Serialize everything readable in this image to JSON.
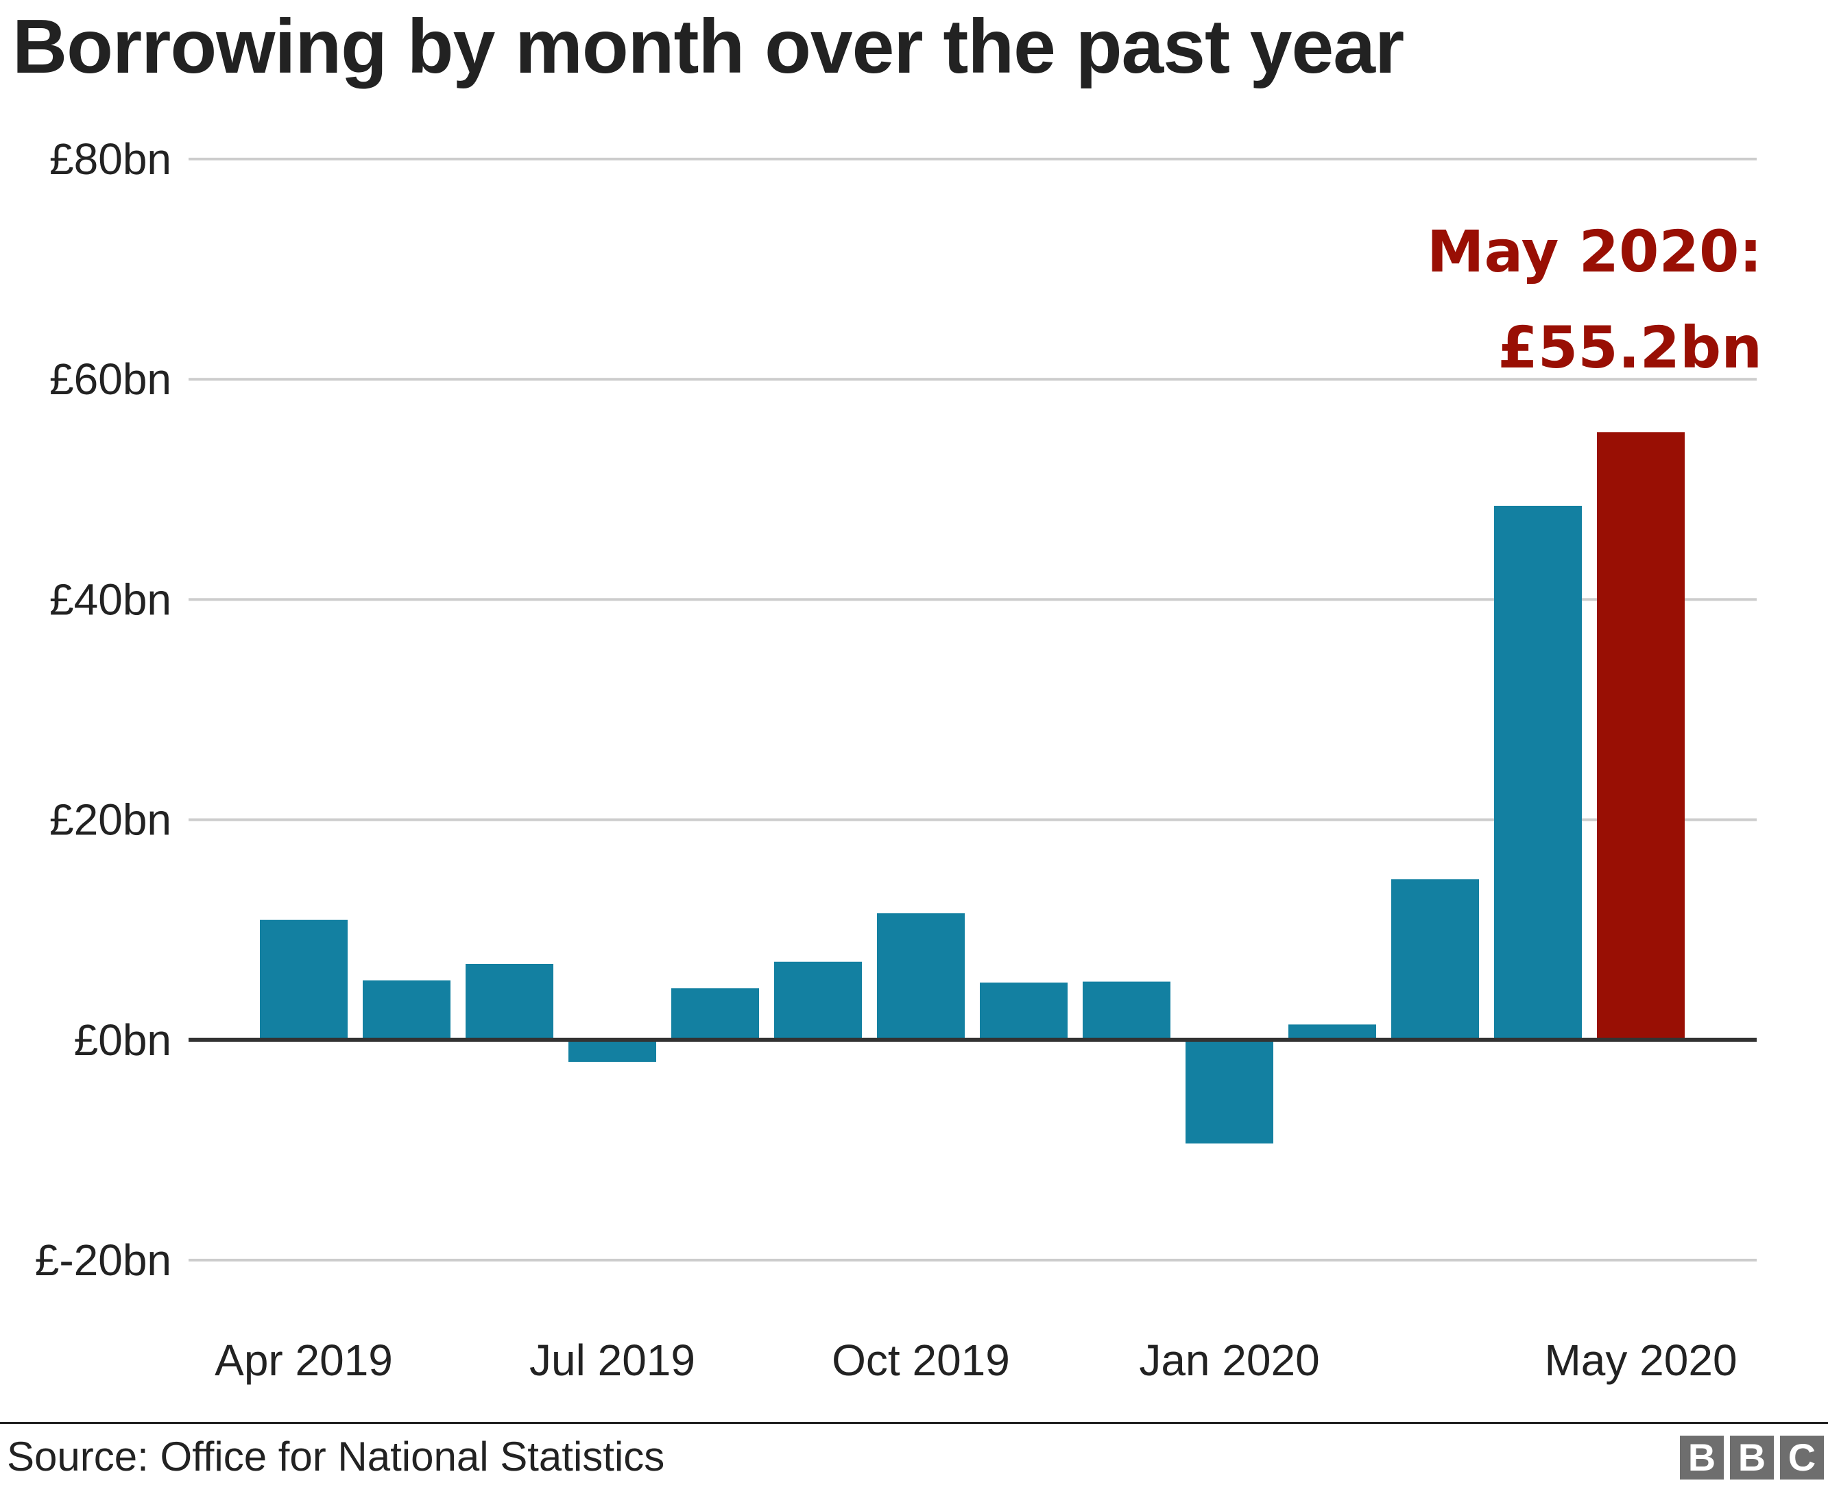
{
  "chart_data": {
    "type": "bar",
    "title": "Borrowing by month over the past year",
    "categories": [
      "Apr 2019",
      "May 2019",
      "Jun 2019",
      "Jul 2019",
      "Aug 2019",
      "Sep 2019",
      "Oct 2019",
      "Nov 2019",
      "Dec 2019",
      "Jan 2020",
      "Feb 2020",
      "Mar 2020",
      "Apr 2020",
      "May 2020"
    ],
    "values": [
      10.9,
      5.4,
      6.9,
      -2.0,
      4.7,
      7.1,
      11.5,
      5.2,
      5.3,
      -9.4,
      1.4,
      14.6,
      48.5,
      55.2
    ],
    "ylim": [
      -20,
      80
    ],
    "yticks": [
      80,
      60,
      40,
      20,
      0,
      -20
    ],
    "ytick_labels": [
      "£80bn",
      "£60bn",
      "£40bn",
      "£20bn",
      "£0bn",
      "£-20bn"
    ],
    "xtick_labels": [
      {
        "index": 0,
        "label": "Apr 2019"
      },
      {
        "index": 3,
        "label": "Jul 2019"
      },
      {
        "index": 6,
        "label": "Oct 2019"
      },
      {
        "index": 9,
        "label": "Jan 2020"
      },
      {
        "index": 13,
        "label": "May 2020"
      }
    ],
    "annotation": {
      "line1": "May 2020:",
      "line2": "£55.2bn",
      "target_index": 13
    },
    "highlight_index": 13,
    "grid": true
  },
  "colors": {
    "bar": "#1380a1",
    "highlight": "#990f04",
    "grid": "#cccccc",
    "zero_line": "#333333",
    "text": "#222222"
  },
  "footer": {
    "source": "Source: Office for National Statistics",
    "logo": [
      "B",
      "B",
      "C"
    ]
  }
}
